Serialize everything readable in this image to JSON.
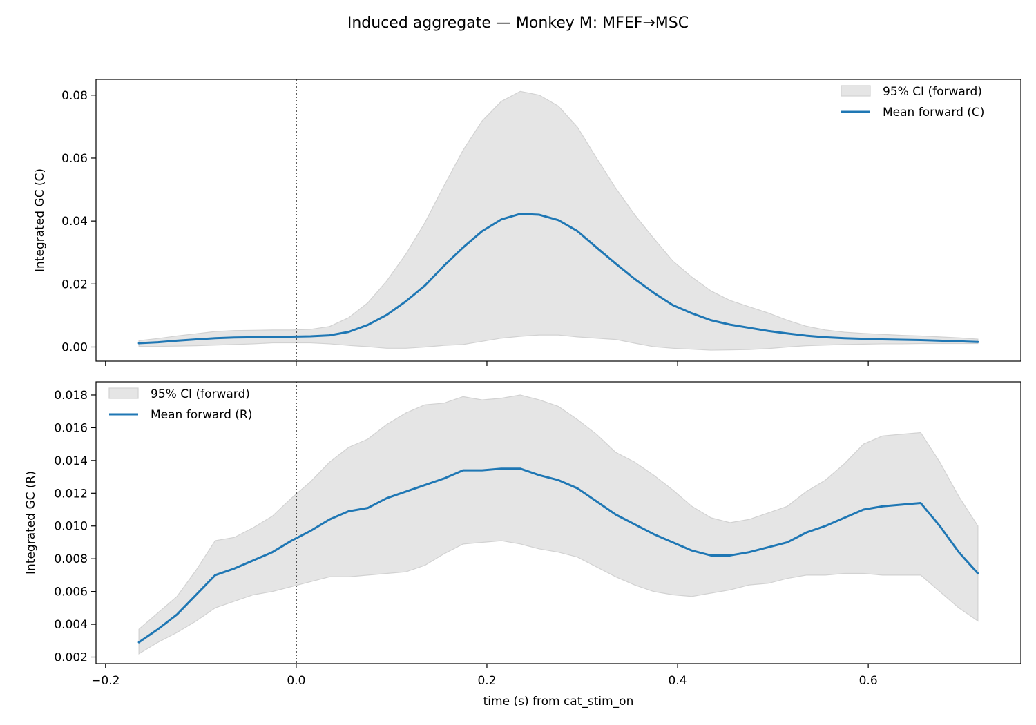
{
  "figure": {
    "suptitle": "Induced aggregate — Monkey M: MFEF→MSC"
  },
  "chart_data": [
    {
      "type": "line",
      "ylabel": "Integrated GC (C)",
      "xlabel": "",
      "xlim": [
        -0.21,
        0.76
      ],
      "ylim": [
        -0.0045,
        0.085
      ],
      "x_ticks": [
        -0.2,
        0.0,
        0.2,
        0.4,
        0.6
      ],
      "x_tick_labels_visible": false,
      "y_ticks": [
        0.0,
        0.02,
        0.04,
        0.06,
        0.08
      ],
      "y_tick_labels": [
        "0.00",
        "0.02",
        "0.04",
        "0.06",
        "0.08"
      ],
      "vline_x": 0.0,
      "legend_placement": "upper right",
      "legend": [
        "95% CI (forward)",
        "Mean forward (C)"
      ],
      "x": [
        -0.165,
        -0.145,
        -0.125,
        -0.105,
        -0.085,
        -0.065,
        -0.045,
        -0.025,
        -0.005,
        0.015,
        0.035,
        0.055,
        0.075,
        0.095,
        0.115,
        0.135,
        0.155,
        0.175,
        0.195,
        0.215,
        0.235,
        0.255,
        0.275,
        0.295,
        0.315,
        0.335,
        0.355,
        0.375,
        0.395,
        0.415,
        0.435,
        0.455,
        0.475,
        0.495,
        0.515,
        0.535,
        0.555,
        0.575,
        0.595,
        0.615,
        0.635,
        0.655,
        0.675,
        0.695,
        0.715
      ],
      "series": [
        {
          "name": "Mean forward (C)",
          "color": "#1f77b4",
          "values": [
            0.0012,
            0.0015,
            0.002,
            0.0024,
            0.0028,
            0.003,
            0.0031,
            0.0033,
            0.0033,
            0.0034,
            0.0037,
            0.0048,
            0.007,
            0.0102,
            0.0145,
            0.0195,
            0.0258,
            0.0316,
            0.0368,
            0.0405,
            0.0423,
            0.042,
            0.0403,
            0.0368,
            0.0316,
            0.0265,
            0.0216,
            0.0172,
            0.0133,
            0.0107,
            0.0085,
            0.0071,
            0.0061,
            0.0051,
            0.0043,
            0.0036,
            0.0031,
            0.0028,
            0.0026,
            0.0024,
            0.0023,
            0.0022,
            0.002,
            0.0018,
            0.0016
          ]
        },
        {
          "name": "95% CI (forward)",
          "type": "band",
          "color": "#e5e5e5",
          "lower": [
            0.0002,
            0.0002,
            0.0003,
            0.0004,
            0.0006,
            0.0008,
            0.001,
            0.0013,
            0.0013,
            0.0013,
            0.001,
            0.0005,
            0.0001,
            -0.0004,
            -0.0004,
            0.0,
            0.0005,
            0.0008,
            0.0018,
            0.0028,
            0.0034,
            0.0038,
            0.0038,
            0.0032,
            0.0028,
            0.0024,
            0.0012,
            0.0001,
            -0.0004,
            -0.0007,
            -0.001,
            -0.0009,
            -0.0008,
            -0.0005,
            0.0,
            0.0004,
            0.0006,
            0.0008,
            0.0009,
            0.001,
            0.001,
            0.0011,
            0.0011,
            0.0011,
            0.0011
          ],
          "upper": [
            0.002,
            0.0027,
            0.0035,
            0.0042,
            0.0049,
            0.0052,
            0.0053,
            0.0054,
            0.0054,
            0.0056,
            0.0065,
            0.0093,
            0.014,
            0.021,
            0.0295,
            0.0395,
            0.0512,
            0.0625,
            0.0718,
            0.078,
            0.0812,
            0.08,
            0.0765,
            0.0698,
            0.06,
            0.0505,
            0.042,
            0.0345,
            0.0273,
            0.0222,
            0.0178,
            0.0148,
            0.0128,
            0.0108,
            0.0085,
            0.0066,
            0.0054,
            0.0047,
            0.0043,
            0.004,
            0.0037,
            0.0035,
            0.0032,
            0.0029,
            0.0025
          ]
        }
      ]
    },
    {
      "type": "line",
      "ylabel": "Integrated GC (R)",
      "xlabel": "time (s) from cat_stim_on",
      "xlim": [
        -0.21,
        0.76
      ],
      "ylim": [
        0.0016,
        0.0188
      ],
      "x_ticks": [
        -0.2,
        0.0,
        0.2,
        0.4,
        0.6
      ],
      "x_tick_labels": [
        "−0.2",
        "0.0",
        "0.2",
        "0.4",
        "0.6"
      ],
      "y_ticks": [
        0.002,
        0.004,
        0.006,
        0.008,
        0.01,
        0.012,
        0.014,
        0.016,
        0.018
      ],
      "y_tick_labels": [
        "0.002",
        "0.004",
        "0.006",
        "0.008",
        "0.010",
        "0.012",
        "0.014",
        "0.016",
        "0.018"
      ],
      "vline_x": 0.0,
      "legend_placement": "upper left",
      "legend": [
        "95% CI (forward)",
        "Mean forward (R)"
      ],
      "x": [
        -0.165,
        -0.145,
        -0.125,
        -0.105,
        -0.085,
        -0.065,
        -0.045,
        -0.025,
        -0.005,
        0.015,
        0.035,
        0.055,
        0.075,
        0.095,
        0.115,
        0.135,
        0.155,
        0.175,
        0.195,
        0.215,
        0.235,
        0.255,
        0.275,
        0.295,
        0.315,
        0.335,
        0.355,
        0.375,
        0.395,
        0.415,
        0.435,
        0.455,
        0.475,
        0.495,
        0.515,
        0.535,
        0.555,
        0.575,
        0.595,
        0.615,
        0.635,
        0.655,
        0.675,
        0.695,
        0.715
      ],
      "series": [
        {
          "name": "Mean forward (R)",
          "color": "#1f77b4",
          "values": [
            0.0029,
            0.0037,
            0.0046,
            0.0058,
            0.007,
            0.0074,
            0.0079,
            0.0084,
            0.0091,
            0.0097,
            0.0104,
            0.0109,
            0.0111,
            0.0117,
            0.0121,
            0.0125,
            0.0129,
            0.0134,
            0.0134,
            0.0135,
            0.0135,
            0.0131,
            0.0128,
            0.0123,
            0.0115,
            0.0107,
            0.0101,
            0.0095,
            0.009,
            0.0085,
            0.0082,
            0.0082,
            0.0084,
            0.0087,
            0.009,
            0.0096,
            0.01,
            0.0105,
            0.011,
            0.0112,
            0.0113,
            0.0114,
            0.01,
            0.0084,
            0.0071
          ]
        },
        {
          "name": "95% CI (forward)",
          "type": "band",
          "color": "#e5e5e5",
          "lower": [
            0.0022,
            0.0029,
            0.0035,
            0.0042,
            0.005,
            0.0054,
            0.0058,
            0.006,
            0.0063,
            0.0066,
            0.0069,
            0.0069,
            0.007,
            0.0071,
            0.0072,
            0.0076,
            0.0083,
            0.0089,
            0.009,
            0.0091,
            0.0089,
            0.0086,
            0.0084,
            0.0081,
            0.0075,
            0.0069,
            0.0064,
            0.006,
            0.0058,
            0.0057,
            0.0059,
            0.0061,
            0.0064,
            0.0065,
            0.0068,
            0.007,
            0.007,
            0.0071,
            0.0071,
            0.007,
            0.007,
            0.007,
            0.006,
            0.005,
            0.0042
          ],
          "upper": [
            0.0037,
            0.0047,
            0.0057,
            0.0073,
            0.0091,
            0.0093,
            0.0099,
            0.0106,
            0.0117,
            0.0127,
            0.0139,
            0.0148,
            0.0153,
            0.0162,
            0.0169,
            0.0174,
            0.0175,
            0.0179,
            0.0177,
            0.0178,
            0.018,
            0.0177,
            0.0173,
            0.0165,
            0.0156,
            0.0145,
            0.0139,
            0.0131,
            0.0122,
            0.0112,
            0.0105,
            0.0102,
            0.0104,
            0.0108,
            0.0112,
            0.0121,
            0.0128,
            0.0138,
            0.015,
            0.0155,
            0.0156,
            0.0157,
            0.0139,
            0.0118,
            0.01
          ]
        }
      ]
    }
  ]
}
